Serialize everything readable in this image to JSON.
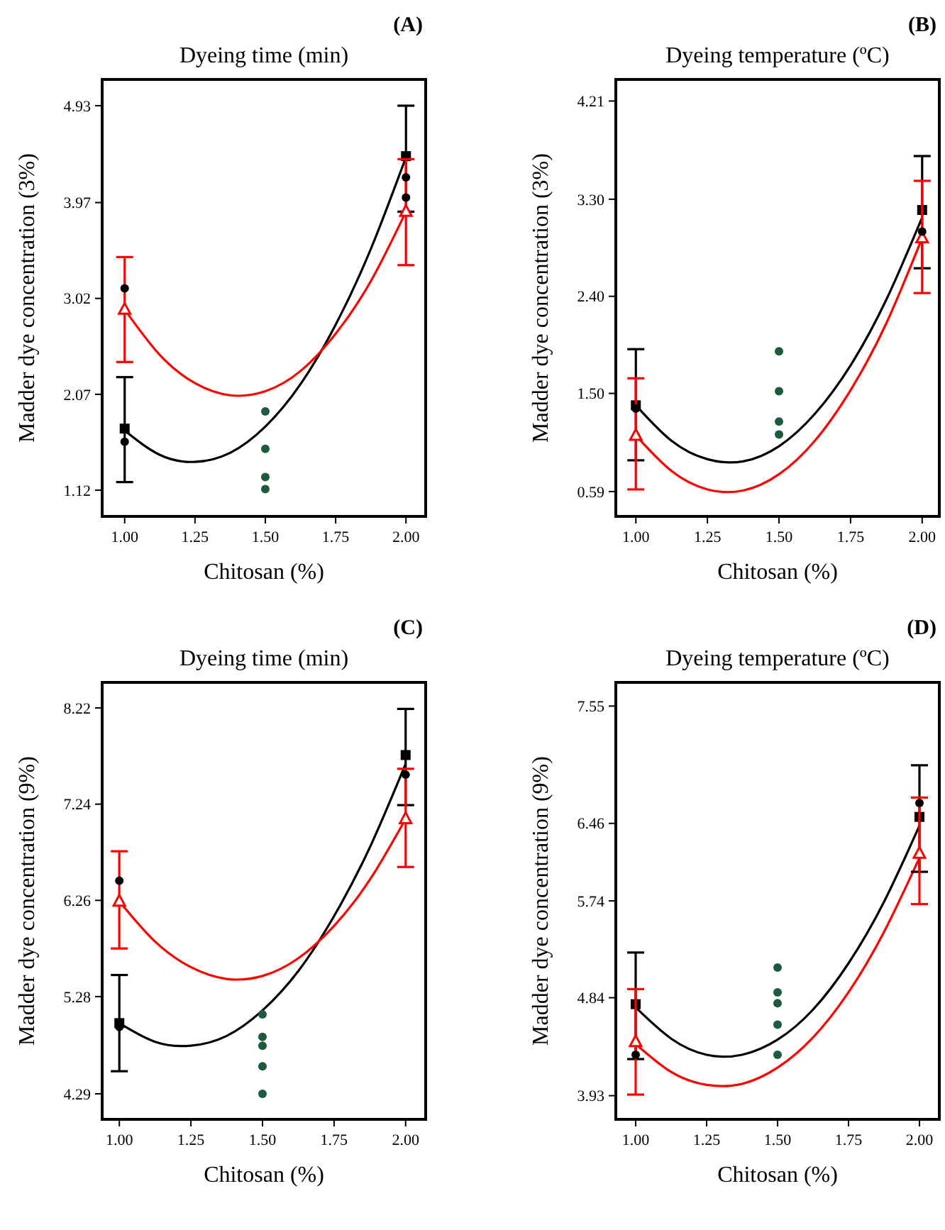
{
  "chart_data": [
    {
      "type": "line",
      "title": "Dyeing time (min)",
      "xlabel": "Chitosan (%)",
      "ylabel": "Madder dye concentration (3%)",
      "annotations": [
        "(A)"
      ],
      "xlim": [
        0.92,
        2.07
      ],
      "ylim": [
        0.86,
        5.19
      ],
      "xticks": [
        {
          "value": 1,
          "label": "1.00"
        },
        {
          "value": 1.25,
          "label": "1.25"
        },
        {
          "value": 1.5,
          "label": "1.50"
        },
        {
          "value": 1.75,
          "label": "1.75"
        },
        {
          "value": 2,
          "label": "2.00"
        }
      ],
      "yticks": [
        1.12,
        2.07,
        3.02,
        3.97,
        4.93
      ],
      "series": [
        {
          "color": "#000000",
          "x": [
            1,
            1.125,
            1.25,
            1.375,
            1.5,
            1.625,
            1.75,
            1.875,
            2
          ],
          "values": [
            1.71,
            1.47,
            1.4,
            1.49,
            1.75,
            2.17,
            2.76,
            3.51,
            4.42
          ]
        },
        {
          "color": "#ff0000",
          "x": [
            1,
            1.125,
            1.25,
            1.375,
            1.5,
            1.625,
            1.75,
            1.875,
            2
          ],
          "values": [
            2.91,
            2.46,
            2.18,
            2.06,
            2.1,
            2.3,
            2.67,
            3.19,
            3.88
          ]
        },
        {
          "type": "scatter",
          "color": "#000000",
          "marker": "square",
          "x": [
            1,
            2
          ],
          "values": [
            1.73,
            4.43
          ],
          "errors": [
            [
              1.2,
              2.24
            ],
            [
              3.88,
              4.93
            ]
          ]
        },
        {
          "type": "scatter",
          "color": "#ff0000",
          "marker": "triangle",
          "x": [
            1,
            2
          ],
          "values": [
            2.91,
            3.88
          ],
          "errors": [
            [
              2.39,
              3.43
            ],
            [
              3.35,
              4.4
            ]
          ]
        },
        {
          "type": "scatter",
          "color": "#000000",
          "marker": "circle",
          "x": [
            1,
            1,
            2,
            2
          ],
          "values": [
            3.12,
            1.6,
            4.22,
            4.02
          ]
        },
        {
          "type": "scatter",
          "color": "#1e5a3c",
          "marker": "circle",
          "x": [
            1.5,
            1.5,
            1.5,
            1.5
          ],
          "values": [
            1.9,
            1.53,
            1.25,
            1.13
          ]
        }
      ]
    },
    {
      "type": "line",
      "title": "Dyeing temperature (ºC)",
      "xlabel": "Chitosan (%)",
      "ylabel": "Madder dye concentration (3%)",
      "annotations": [
        "(B)"
      ],
      "xlim": [
        0.93,
        2.06
      ],
      "ylim": [
        0.36,
        4.41
      ],
      "xticks": [
        {
          "value": 1,
          "label": "1.00"
        },
        {
          "value": 1.25,
          "label": "1.25"
        },
        {
          "value": 1.5,
          "label": "1.50"
        },
        {
          "value": 1.75,
          "label": "1.75"
        },
        {
          "value": 2,
          "label": "2.00"
        }
      ],
      "yticks": [
        0.59,
        {
          "value": 1.5,
          "label": "1.50"
        },
        {
          "value": 2.4,
          "label": "2.40"
        },
        {
          "value": 3.3,
          "label": "3.30"
        },
        4.21
      ],
      "series": [
        {
          "color": "#000000",
          "x": [
            1,
            1.125,
            1.25,
            1.375,
            1.5,
            1.625,
            1.75,
            1.875,
            2
          ],
          "values": [
            1.39,
            1.06,
            0.89,
            0.87,
            1.01,
            1.31,
            1.76,
            2.37,
            3.13
          ]
        },
        {
          "color": "#ff0000",
          "x": [
            1,
            1.125,
            1.25,
            1.375,
            1.5,
            1.625,
            1.75,
            1.875,
            2
          ],
          "values": [
            1.11,
            0.78,
            0.61,
            0.6,
            0.75,
            1.06,
            1.53,
            2.15,
            2.94
          ]
        },
        {
          "type": "scatter",
          "color": "#000000",
          "marker": "square",
          "x": [
            1,
            2
          ],
          "values": [
            1.39,
            3.2
          ],
          "errors": [
            [
              0.88,
              1.91
            ],
            [
              2.66,
              3.7
            ]
          ]
        },
        {
          "type": "scatter",
          "color": "#ff0000",
          "marker": "triangle",
          "x": [
            1,
            2
          ],
          "values": [
            1.11,
            2.94
          ],
          "errors": [
            [
              0.61,
              1.64
            ],
            [
              2.43,
              3.47
            ]
          ]
        },
        {
          "type": "scatter",
          "color": "#000000",
          "marker": "circle",
          "x": [
            1,
            2
          ],
          "values": [
            1.36,
            3.0
          ]
        },
        {
          "type": "scatter",
          "color": "#1e5a3c",
          "marker": "circle",
          "x": [
            1.5,
            1.5,
            1.5,
            1.5
          ],
          "values": [
            1.89,
            1.52,
            1.24,
            1.12
          ]
        }
      ]
    },
    {
      "type": "line",
      "title": "Dyeing time (min)",
      "xlabel": "Chitosan (%)",
      "ylabel": "Madder dye concentration (9%)",
      "annotations": [
        "(C)"
      ],
      "xlim": [
        0.94,
        2.07
      ],
      "ylim": [
        4.03,
        8.48
      ],
      "xticks": [
        {
          "value": 1,
          "label": "1.00"
        },
        {
          "value": 1.25,
          "label": "1.25"
        },
        {
          "value": 1.5,
          "label": "1.50"
        },
        {
          "value": 1.75,
          "label": "1.75"
        },
        {
          "value": 2,
          "label": "2.00"
        }
      ],
      "yticks": [
        4.29,
        5.28,
        6.26,
        7.24,
        8.22
      ],
      "series": [
        {
          "color": "#000000",
          "x": [
            1,
            1.125,
            1.25,
            1.375,
            1.5,
            1.625,
            1.75,
            1.875,
            2
          ],
          "values": [
            5.01,
            4.82,
            4.78,
            4.88,
            5.14,
            5.54,
            6.1,
            6.8,
            7.65
          ]
        },
        {
          "color": "#ff0000",
          "x": [
            1,
            1.125,
            1.25,
            1.375,
            1.5,
            1.625,
            1.75,
            1.875,
            2
          ],
          "values": [
            6.25,
            5.84,
            5.58,
            5.46,
            5.49,
            5.67,
            6.0,
            6.47,
            7.09
          ]
        },
        {
          "type": "scatter",
          "color": "#000000",
          "marker": "square",
          "x": [
            1,
            2
          ],
          "values": [
            5.01,
            7.74
          ],
          "errors": [
            [
              4.52,
              5.5
            ],
            [
              7.23,
              8.21
            ]
          ]
        },
        {
          "type": "scatter",
          "color": "#ff0000",
          "marker": "triangle",
          "x": [
            1,
            2
          ],
          "values": [
            6.25,
            7.09
          ],
          "errors": [
            [
              5.77,
              6.76
            ],
            [
              6.6,
              7.6
            ]
          ]
        },
        {
          "type": "scatter",
          "color": "#000000",
          "marker": "circle",
          "x": [
            1,
            1,
            2
          ],
          "values": [
            6.46,
            4.97,
            7.54
          ]
        },
        {
          "type": "scatter",
          "color": "#1e5a3c",
          "marker": "circle",
          "x": [
            1.5,
            1.5,
            1.5,
            1.5,
            1.5
          ],
          "values": [
            5.1,
            4.87,
            4.78,
            4.57,
            4.29
          ]
        }
      ]
    },
    {
      "type": "line",
      "title": "Dyeing temperature (ºC)",
      "xlabel": "Chitosan (%)",
      "ylabel": "Madder dye concentration (9%)",
      "annotations": [
        "(D)"
      ],
      "xlim": [
        0.93,
        2.07
      ],
      "ylim": [
        3.71,
        7.77
      ],
      "xticks": [
        {
          "value": 1,
          "label": "1.00"
        },
        {
          "value": 1.25,
          "label": "1.25"
        },
        {
          "value": 1.5,
          "label": "1.50"
        },
        {
          "value": 1.75,
          "label": "1.75"
        },
        {
          "value": 2,
          "label": "2.00"
        }
      ],
      "yticks": [
        3.93,
        4.84,
        5.74,
        6.46,
        7.55
      ],
      "series": [
        {
          "color": "#000000",
          "x": [
            1,
            1.125,
            1.25,
            1.375,
            1.5,
            1.625,
            1.75,
            1.875,
            2
          ],
          "values": [
            4.75,
            4.46,
            4.31,
            4.31,
            4.45,
            4.73,
            5.16,
            5.73,
            6.44
          ]
        },
        {
          "color": "#ff0000",
          "x": [
            1,
            1.125,
            1.25,
            1.375,
            1.5,
            1.625,
            1.75,
            1.875,
            2
          ],
          "values": [
            4.41,
            4.15,
            4.03,
            4.04,
            4.19,
            4.47,
            4.89,
            5.45,
            6.14
          ]
        },
        {
          "type": "scatter",
          "color": "#000000",
          "marker": "square",
          "x": [
            1,
            2
          ],
          "values": [
            4.78,
            6.52
          ],
          "errors": [
            [
              4.27,
              5.26
            ],
            [
              6.01,
              7.0
            ]
          ]
        },
        {
          "type": "scatter",
          "color": "#ff0000",
          "marker": "triangle",
          "x": [
            1,
            2
          ],
          "values": [
            4.43,
            6.18
          ],
          "errors": [
            [
              3.94,
              4.92
            ],
            [
              5.71,
              6.7
            ]
          ]
        },
        {
          "type": "scatter",
          "color": "#000000",
          "marker": "circle",
          "x": [
            1,
            2
          ],
          "values": [
            4.31,
            6.65
          ]
        },
        {
          "type": "scatter",
          "color": "#1e5a3c",
          "marker": "circle",
          "x": [
            1.5,
            1.5,
            1.5,
            1.5,
            1.5
          ],
          "values": [
            5.12,
            4.89,
            4.79,
            4.59,
            4.31
          ]
        }
      ]
    }
  ]
}
